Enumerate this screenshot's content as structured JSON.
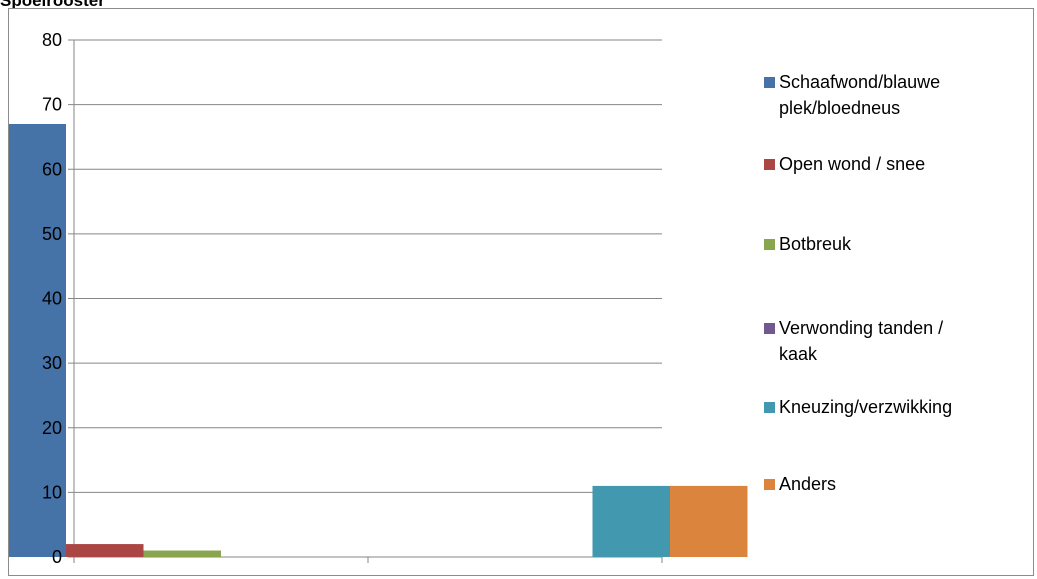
{
  "chart_data": {
    "type": "bar",
    "title": "Spoelrooster",
    "ylim": [
      0,
      80
    ],
    "yticks": [
      0,
      10,
      20,
      30,
      40,
      50,
      60,
      70,
      80
    ],
    "groups": 2,
    "series": [
      {
        "name": "Schaafwond/blauwe plek/bloedneus",
        "color": "#4572a7",
        "values": [
          67,
          null
        ]
      },
      {
        "name": "Open wond / snee",
        "color": "#aa4643",
        "values": [
          2,
          null
        ]
      },
      {
        "name": "Botbreuk",
        "color": "#89a54e",
        "values": [
          1,
          null
        ]
      },
      {
        "name": "Verwonding tanden / kaak",
        "color": "#71588f",
        "values": [
          null,
          null
        ]
      },
      {
        "name": "Kneuzing/verzwikking",
        "color": "#4198af",
        "values": [
          null,
          11
        ]
      },
      {
        "name": "Anders",
        "color": "#db843d",
        "values": [
          null,
          11
        ]
      }
    ],
    "grid": true,
    "legend_position": "right"
  }
}
